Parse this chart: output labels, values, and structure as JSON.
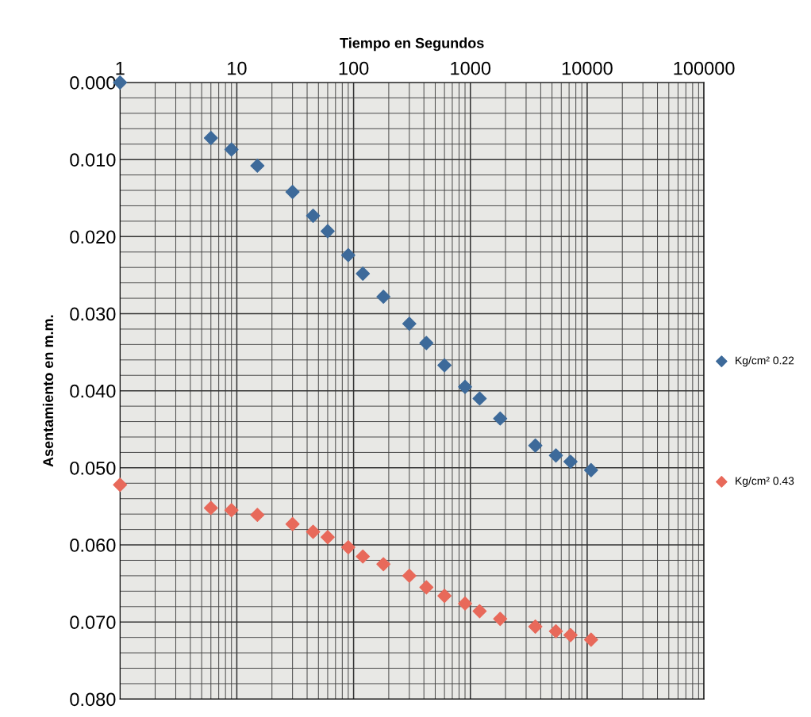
{
  "chart_data": {
    "type": "scatter",
    "xlabel": "Tiempo en Segundos",
    "ylabel": "Asentamiento en m.m.",
    "x": [
      1,
      6,
      9,
      15,
      30,
      45,
      60,
      90,
      120,
      180,
      300,
      420,
      600,
      900,
      1200,
      1800,
      3600,
      5400,
      7200,
      10800
    ],
    "series": [
      {
        "name": "Kg/cm² 0.22",
        "color": "#3d6a9a",
        "values": [
          0.0,
          0.0072,
          0.0087,
          0.0108,
          0.0142,
          0.0173,
          0.0193,
          0.0224,
          0.0248,
          0.0278,
          0.0313,
          0.0338,
          0.0367,
          0.0395,
          0.041,
          0.0436,
          0.0471,
          0.0484,
          0.0492,
          0.0503
        ]
      },
      {
        "name": "Kg/cm² 0.43",
        "color": "#e8695a",
        "values": [
          0.0522,
          0.0552,
          0.0555,
          0.0561,
          0.0573,
          0.0583,
          0.059,
          0.0603,
          0.0615,
          0.0625,
          0.064,
          0.0655,
          0.0666,
          0.0676,
          0.0686,
          0.0696,
          0.0706,
          0.0712,
          0.0717,
          0.0723
        ]
      }
    ],
    "log": "x",
    "xlim": [
      1,
      100000
    ],
    "xticks": [
      1,
      10,
      100,
      1000,
      10000,
      100000
    ],
    "ylim": [
      0.08,
      0.0
    ],
    "yticks": [
      {
        "value": 0.0,
        "label": "0.000"
      },
      {
        "value": 0.01,
        "label": "0.010"
      },
      {
        "value": 0.02,
        "label": "0.020"
      },
      {
        "value": 0.03,
        "label": "0.030"
      },
      {
        "value": 0.04,
        "label": "0.040"
      },
      {
        "value": 0.05,
        "label": "0.050"
      },
      {
        "value": 0.06,
        "label": "0.060"
      },
      {
        "value": 0.07,
        "label": "0.070"
      },
      {
        "value": 0.08,
        "label": "0.080"
      }
    ],
    "grid": true,
    "legend": "right",
    "marker": "diamond"
  }
}
